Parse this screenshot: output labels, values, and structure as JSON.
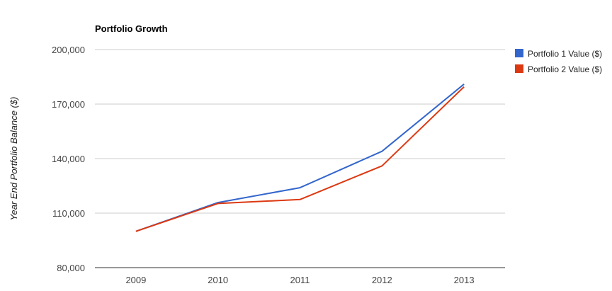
{
  "chart_data": {
    "type": "line",
    "title": "Portfolio Growth",
    "xlabel": "",
    "ylabel": "Year End Portfolio Balance ($)",
    "categories": [
      "2009",
      "2010",
      "2011",
      "2012",
      "2013"
    ],
    "series": [
      {
        "name": "Portfolio 1 Value ($)",
        "color": "#3366cc",
        "values": [
          100000,
          115800,
          124000,
          144000,
          181000
        ]
      },
      {
        "name": "Portfolio 2 Value ($)",
        "color": "#dc3912",
        "values": [
          100000,
          115300,
          117500,
          136000,
          179500
        ]
      }
    ],
    "ylim": [
      80000,
      200000
    ],
    "yticks": [
      80000,
      110000,
      140000,
      170000,
      200000
    ],
    "ytick_labels": [
      "80,000",
      "110,000",
      "140,000",
      "170,000",
      "200,000"
    ],
    "grid": true,
    "legend_position": "right"
  }
}
